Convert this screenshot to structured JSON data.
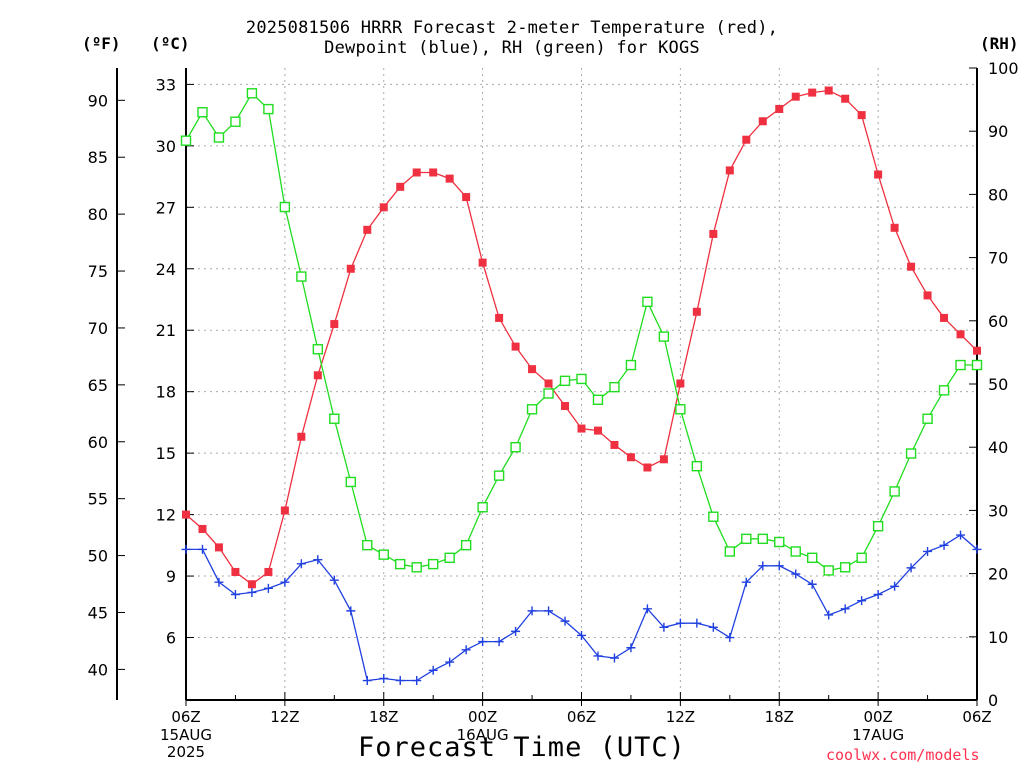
{
  "header": {
    "title_line1": "2025081506 HRRR Forecast 2-meter Temperature (red),",
    "title_line2": "Dewpoint (blue), RH (green) for KOGS"
  },
  "axes_labels": {
    "left_outer_unit": "(ºF)",
    "left_inner_unit": "(ºC)",
    "right_unit": "(RH)",
    "x_title": "Forecast Time (UTC)"
  },
  "credit": "coolwx.com/models",
  "colors": {
    "temperature": "#ee3040",
    "dewpoint": "#2040e0",
    "rh": "#20dd20",
    "grid": "#aaaaaa",
    "axis": "#000000"
  },
  "chart_data": {
    "type": "line",
    "title": "2025081506 HRRR Forecast 2-meter Temperature (red), Dewpoint (blue), RH (green) for KOGS",
    "x_hours": [
      0,
      1,
      2,
      3,
      4,
      5,
      6,
      7,
      8,
      9,
      10,
      11,
      12,
      13,
      14,
      15,
      16,
      17,
      18,
      19,
      20,
      21,
      22,
      23,
      24,
      25,
      26,
      27,
      28,
      29,
      30,
      31,
      32,
      33,
      34,
      35,
      36,
      37,
      38,
      39,
      40,
      41,
      42,
      43,
      44,
      45,
      46,
      47,
      48
    ],
    "x_ticks": [
      {
        "hour": 0,
        "label": "06Z",
        "date": "15AUG",
        "year": "2025"
      },
      {
        "hour": 6,
        "label": "12Z"
      },
      {
        "hour": 12,
        "label": "18Z"
      },
      {
        "hour": 18,
        "label": "00Z",
        "date": "16AUG"
      },
      {
        "hour": 24,
        "label": "06Z"
      },
      {
        "hour": 30,
        "label": "12Z"
      },
      {
        "hour": 36,
        "label": "18Z"
      },
      {
        "hour": 42,
        "label": "00Z",
        "date": "17AUG"
      },
      {
        "hour": 48,
        "label": "06Z"
      }
    ],
    "y_celsius_ticks": [
      6,
      9,
      12,
      15,
      18,
      21,
      24,
      27,
      30,
      33
    ],
    "y_fahrenheit_ticks": [
      40,
      45,
      50,
      55,
      60,
      65,
      70,
      75,
      80,
      85,
      90
    ],
    "y_rh_ticks": [
      0,
      10,
      20,
      30,
      40,
      50,
      60,
      70,
      80,
      90,
      100
    ],
    "ylim_celsius": [
      2.95,
      33.8
    ],
    "ylim_rh": [
      0,
      100
    ],
    "series": [
      {
        "name": "Temperature",
        "axis": "celsius",
        "marker": "filled-square",
        "color": "#ee3040",
        "values": [
          12.0,
          11.3,
          10.4,
          9.2,
          8.6,
          9.2,
          12.2,
          15.8,
          18.8,
          21.3,
          24.0,
          25.9,
          27.0,
          28.0,
          28.7,
          28.7,
          28.4,
          27.5,
          24.3,
          21.6,
          20.2,
          19.1,
          18.4,
          17.3,
          16.2,
          16.1,
          15.4,
          14.8,
          14.3,
          14.7,
          18.4,
          21.9,
          25.7,
          28.8,
          30.3,
          31.2,
          31.8,
          32.4,
          32.6,
          32.7,
          32.3,
          31.5,
          28.6,
          26.0,
          24.1,
          22.7,
          21.6,
          20.8,
          20.0
        ]
      },
      {
        "name": "Dewpoint",
        "axis": "celsius",
        "marker": "plus",
        "color": "#2040e0",
        "values": [
          10.3,
          10.3,
          8.7,
          8.1,
          8.2,
          8.4,
          8.7,
          9.6,
          9.8,
          8.8,
          7.3,
          3.9,
          4.0,
          3.9,
          3.9,
          4.4,
          4.8,
          5.4,
          5.8,
          5.8,
          6.3,
          7.3,
          7.3,
          6.8,
          6.1,
          5.1,
          5.0,
          5.5,
          7.4,
          6.5,
          6.7,
          6.7,
          6.5,
          6.0,
          8.7,
          9.5,
          9.5,
          9.1,
          8.6,
          7.1,
          7.4,
          7.8,
          8.1,
          8.5,
          9.4,
          10.2,
          10.5,
          11.0,
          10.3
        ]
      },
      {
        "name": "RH",
        "axis": "rh",
        "marker": "open-square",
        "color": "#20dd20",
        "values": [
          88.5,
          93,
          89,
          91.5,
          96,
          93.5,
          78,
          67,
          55.5,
          44.5,
          34.5,
          24.5,
          23,
          21.5,
          21,
          21.5,
          22.5,
          24.5,
          30.5,
          35.5,
          40,
          46,
          48.5,
          50.5,
          50.8,
          47.5,
          49.5,
          53,
          63,
          57.5,
          46,
          37,
          29,
          23.5,
          25.5,
          25.5,
          25,
          23.5,
          22.5,
          20.5,
          21,
          22.5,
          27.5,
          33,
          39,
          44.5,
          49,
          53,
          53
        ]
      }
    ]
  }
}
